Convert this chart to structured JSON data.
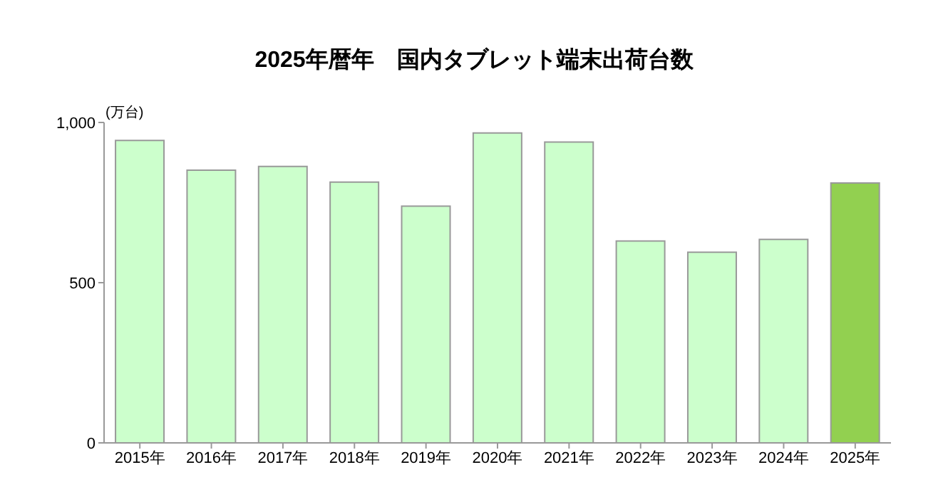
{
  "chart_data": {
    "type": "bar",
    "title": "2025年暦年　国内タブレット端末出荷台数",
    "ylabel": "(万台)",
    "categories": [
      "2015年",
      "2016年",
      "2017年",
      "2018年",
      "2019年",
      "2020年",
      "2021年",
      "2022年",
      "2023年",
      "2024年",
      "2025年"
    ],
    "values": [
      944,
      851,
      863,
      814,
      739,
      967,
      939,
      630,
      595,
      635,
      811
    ],
    "colors": [
      "#ccffcc",
      "#ccffcc",
      "#ccffcc",
      "#ccffcc",
      "#ccffcc",
      "#ccffcc",
      "#ccffcc",
      "#ccffcc",
      "#ccffcc",
      "#ccffcc",
      "#92d050"
    ],
    "ylim": [
      0,
      1000
    ],
    "yticks": [
      0,
      500,
      {
        "value": 1000,
        "label": "1,000"
      }
    ],
    "grid": false,
    "legend": false
  }
}
